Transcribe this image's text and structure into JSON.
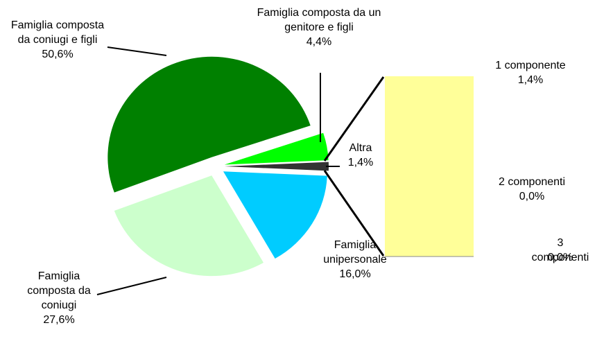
{
  "chart_data": {
    "type": "pie",
    "categories": [
      "Famiglia composta da coniugi e figli",
      "Famiglia composta da coniugi",
      "Famiglia unipersonale",
      "Altra",
      "Famiglia composta da un genitore e figli"
    ],
    "values": [
      50.6,
      27.6,
      16.0,
      1.4,
      4.4
    ],
    "value_labels": [
      "50,6%",
      "27,6%",
      "16,0%",
      "1,4%",
      "4,4%"
    ],
    "colors": [
      "#008000",
      "#ccffcc",
      "#00ccff",
      "#333333",
      "#00ff00"
    ],
    "bar": {
      "type": "bar",
      "categories": [
        "1 componente",
        "2 componenti",
        "3 componenti"
      ],
      "values": [
        1.4,
        0.0,
        0.0
      ],
      "value_labels": [
        "1,4%",
        "0,0%",
        "0,0%"
      ],
      "color": "#ffff99"
    }
  }
}
